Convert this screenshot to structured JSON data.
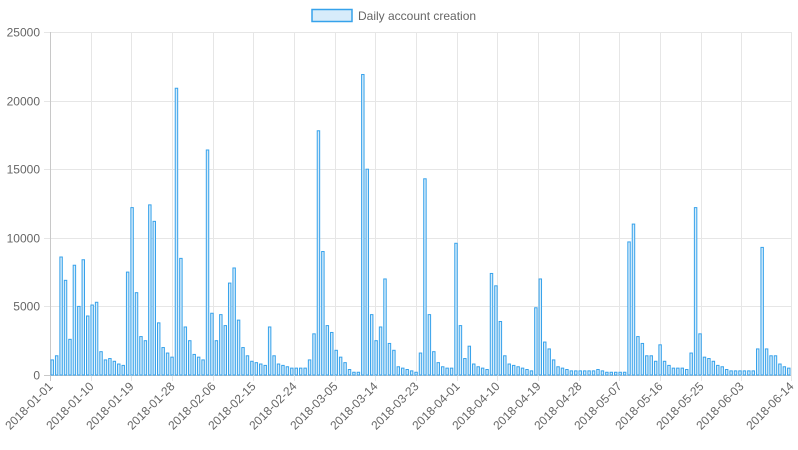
{
  "chart_data": {
    "type": "bar",
    "legend": {
      "label": "Daily account creation",
      "position": "top"
    },
    "colors": {
      "bar_fill": "#d7ecfa",
      "bar_stroke": "#36a2eb",
      "grid": "#e6e6e6",
      "axis": "#c8c8c8",
      "text": "#666666"
    },
    "ylim": [
      0,
      25000
    ],
    "y_ticks": [
      "0",
      "5000",
      "10000",
      "15000",
      "20000",
      "25000"
    ],
    "x_start": "2018-01-01",
    "x_end": "2018-06-14",
    "x_tick_labels": [
      "2018-01-01",
      "2018-01-10",
      "2018-01-19",
      "2018-01-28",
      "2018-02-06",
      "2018-02-15",
      "2018-02-24",
      "2018-03-05",
      "2018-03-14",
      "2018-03-23",
      "2018-04-01",
      "2018-04-10",
      "2018-04-19",
      "2018-04-28",
      "2018-05-07",
      "2018-05-16",
      "2018-05-25",
      "2018-06-03",
      "2018-06-14"
    ],
    "grid": true,
    "values": [
      1100,
      1400,
      8600,
      6900,
      2600,
      8000,
      5000,
      8400,
      4300,
      5100,
      5300,
      1700,
      1100,
      1200,
      1000,
      800,
      700,
      7500,
      12200,
      6000,
      2800,
      2500,
      12400,
      11200,
      3800,
      2000,
      1600,
      1300,
      20900,
      8500,
      3500,
      2500,
      1500,
      1300,
      1100,
      16400,
      4500,
      2500,
      4400,
      3600,
      6700,
      7800,
      4000,
      2000,
      1400,
      1000,
      900,
      800,
      700,
      3500,
      1400,
      800,
      700,
      600,
      500,
      500,
      500,
      500,
      1100,
      3000,
      17800,
      9000,
      3600,
      3100,
      1800,
      1300,
      900,
      400,
      200,
      200,
      21900,
      15000,
      4400,
      2500,
      3500,
      7000,
      2300,
      1800,
      600,
      500,
      400,
      300,
      200,
      1600,
      14300,
      4400,
      1700,
      900,
      600,
      500,
      500,
      9600,
      3600,
      1200,
      2100,
      800,
      600,
      500,
      400,
      7400,
      6500,
      3900,
      1400,
      800,
      700,
      600,
      500,
      400,
      300,
      4900,
      7000,
      2400,
      1900,
      1100,
      600,
      500,
      400,
      300,
      300,
      300,
      300,
      300,
      300,
      400,
      300,
      200,
      200,
      200,
      200,
      200,
      9700,
      11000,
      2800,
      2300,
      1400,
      1400,
      1000,
      2200,
      1000,
      700,
      500,
      500,
      500,
      400,
      1600,
      12200,
      3000,
      1300,
      1200,
      1000,
      700,
      600,
      400,
      300,
      300,
      300,
      300,
      300,
      300,
      1900,
      9300,
      1900,
      1400,
      1400,
      800,
      600,
      500
    ]
  }
}
